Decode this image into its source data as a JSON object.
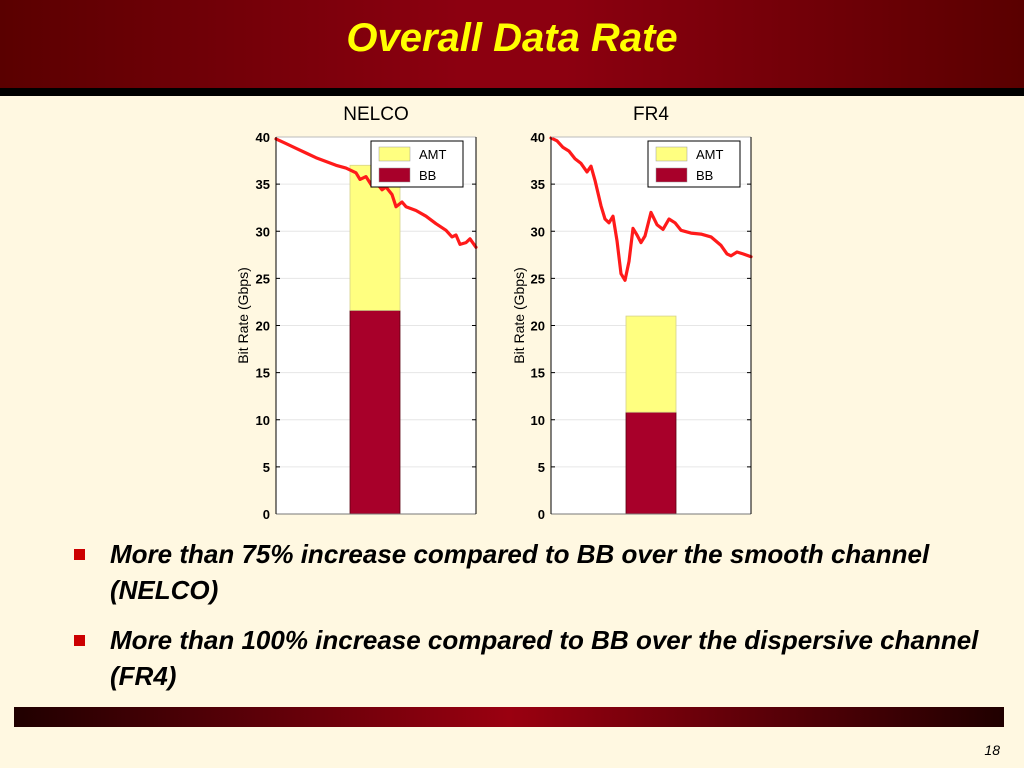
{
  "slide": {
    "title": "Overall Data Rate",
    "bullets": [
      "More than 75% increase compared to BB over the smooth channel (NELCO)",
      "More than 100% increase compared to BB over the dispersive channel (FR4)"
    ],
    "page_number": "18"
  },
  "colors": {
    "title_text": "#FFFF00",
    "amt": "#FFFF80",
    "bb": "#A8002A",
    "curve": "#FF1A1A",
    "bullet": "#CC0000",
    "background": "#FFF8E1"
  },
  "chart_data": [
    {
      "type": "bar",
      "title": "NELCO",
      "ylabel": "Bit Rate (Gbps)",
      "ylim": [
        0,
        40
      ],
      "yticks": [
        0,
        5,
        10,
        15,
        20,
        25,
        30,
        35,
        40
      ],
      "legend": {
        "placement": "top-right",
        "entries": [
          "AMT",
          "BB"
        ]
      },
      "grid": true,
      "stacked_bar": {
        "BB": 21.6,
        "AMT_total": 37.0
      },
      "curve": {
        "x": [
          0,
          0.05,
          0.1,
          0.15,
          0.2,
          0.25,
          0.3,
          0.35,
          0.4,
          0.42,
          0.45,
          0.48,
          0.5,
          0.53,
          0.55,
          0.58,
          0.6,
          0.63,
          0.65,
          0.7,
          0.75,
          0.8,
          0.85,
          0.88,
          0.9,
          0.92,
          0.95,
          0.97,
          1.0
        ],
        "y": [
          39.8,
          39.3,
          38.8,
          38.3,
          37.8,
          37.4,
          37.0,
          36.7,
          36.2,
          35.5,
          35.8,
          34.8,
          35.2,
          34.4,
          34.7,
          33.9,
          32.6,
          33.1,
          32.6,
          32.2,
          31.6,
          30.8,
          30.1,
          29.4,
          29.6,
          28.6,
          28.8,
          29.2,
          28.3
        ]
      }
    },
    {
      "type": "bar",
      "title": "FR4",
      "ylabel": "Bit Rate (Gbps)",
      "ylim": [
        0,
        40
      ],
      "yticks": [
        0,
        5,
        10,
        15,
        20,
        25,
        30,
        35,
        40
      ],
      "legend": {
        "placement": "top-right",
        "entries": [
          "AMT",
          "BB"
        ]
      },
      "grid": true,
      "stacked_bar": {
        "BB": 10.8,
        "AMT_total": 21.0
      },
      "curve": {
        "x": [
          0,
          0.03,
          0.06,
          0.09,
          0.12,
          0.15,
          0.18,
          0.2,
          0.22,
          0.25,
          0.27,
          0.29,
          0.31,
          0.33,
          0.35,
          0.37,
          0.39,
          0.41,
          0.43,
          0.45,
          0.47,
          0.5,
          0.53,
          0.56,
          0.59,
          0.62,
          0.65,
          0.7,
          0.75,
          0.8,
          0.85,
          0.88,
          0.9,
          0.93,
          0.96,
          1.0
        ],
        "y": [
          39.9,
          39.6,
          38.9,
          38.5,
          37.7,
          37.2,
          36.3,
          36.9,
          35.4,
          32.7,
          31.3,
          30.9,
          31.6,
          29.0,
          25.5,
          24.8,
          26.8,
          30.3,
          29.6,
          28.8,
          29.5,
          32.0,
          30.7,
          30.2,
          31.3,
          30.9,
          30.1,
          29.8,
          29.7,
          29.4,
          28.5,
          27.6,
          27.4,
          27.8,
          27.6,
          27.3
        ]
      }
    }
  ]
}
